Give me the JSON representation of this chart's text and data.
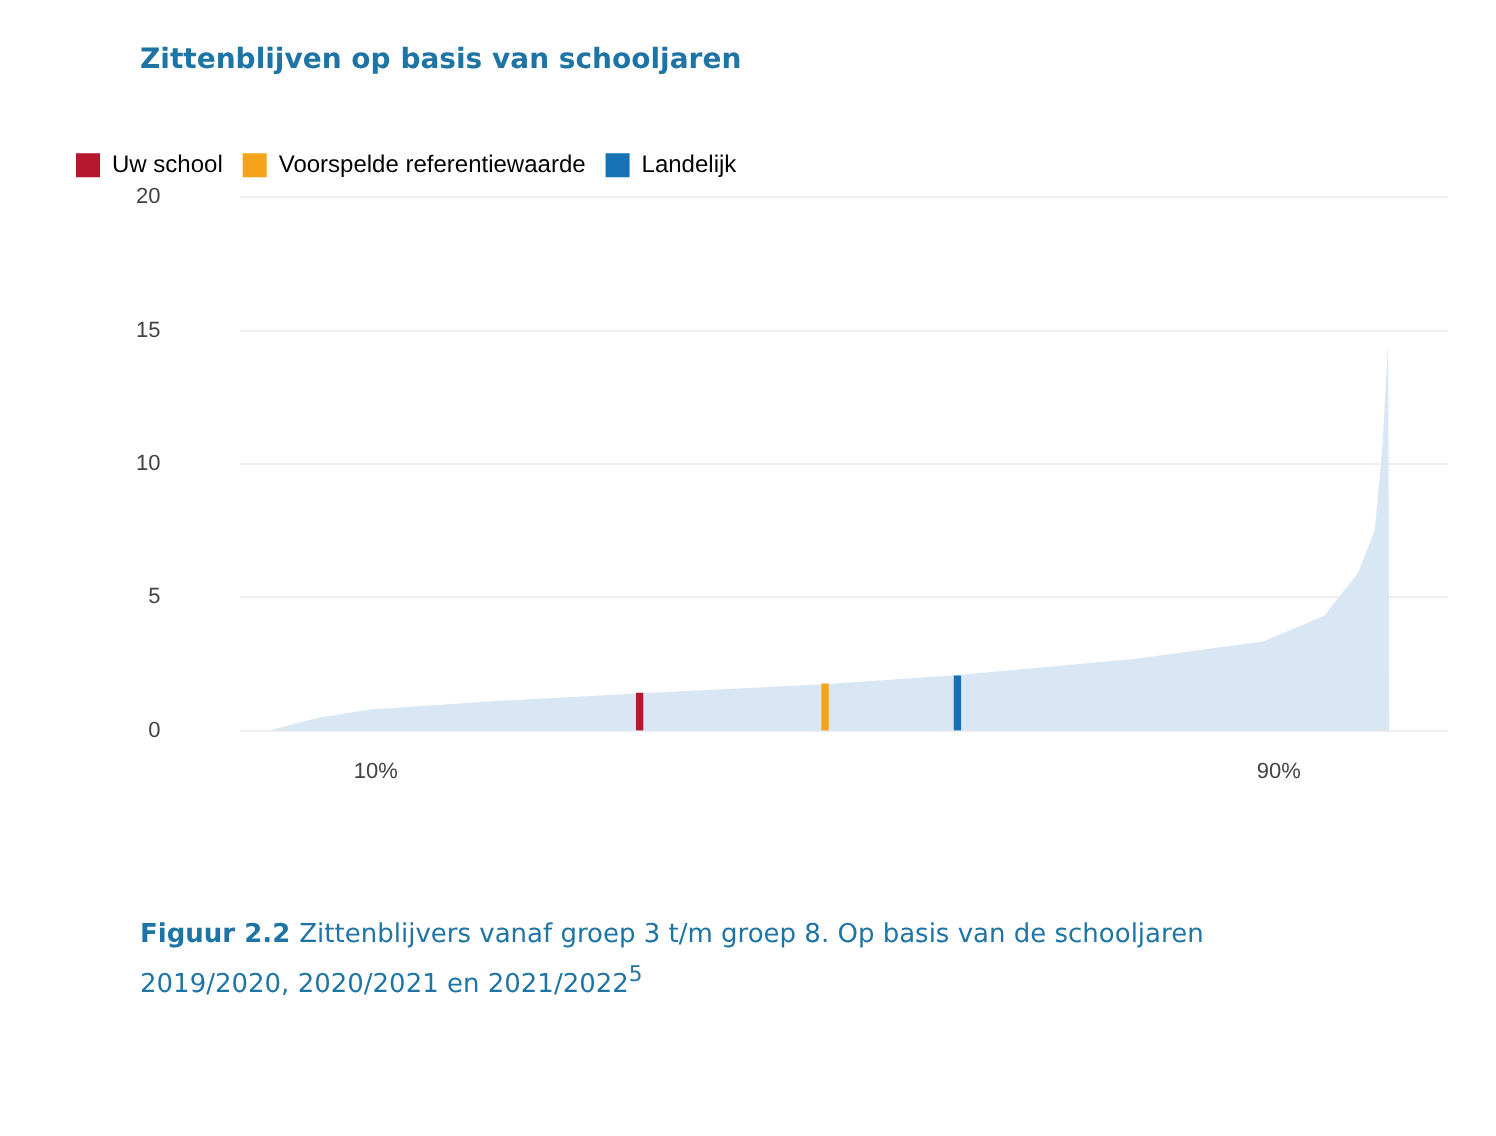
{
  "chart_data": {
    "type": "area",
    "title": "Zittenblijven op basis van schooljaren",
    "annotations": [
      "Figuur 2.2",
      "Zittenblijvers vanaf groep 3 t/m groep 8. Op basis van de schooljaren 2019/2020, 2020/2021 en 2021/2022$^{5}$"
    ],
    "xlim": [
      -2,
      105
    ],
    "xticks": [
      {
        "value": 10,
        "label": "10%"
      },
      {
        "value": 90,
        "label": "90%"
      }
    ],
    "ylim": [
      0,
      20
    ],
    "yticks": [
      0,
      5,
      10,
      15,
      20
    ],
    "grid": "y",
    "legend": "top left",
    "series": [
      {
        "color": "#d9e7f4",
        "x": [
          0.4,
          5,
          9.5,
          20,
          33.9,
          50,
          61,
          77.3,
          88.6,
          94,
          97,
          98.5,
          99.2,
          99.7,
          99.8
        ],
        "values": [
          0,
          0.5,
          0.8,
          1.1,
          1.42,
          1.75,
          2.07,
          2.7,
          3.35,
          4.3,
          5.9,
          7.5,
          10.7,
          14.6,
          0
        ]
      },
      {
        "type": "bar",
        "name": "Uw school",
        "color": "#b5172f",
        "x": [
          33.9
        ],
        "values": [
          1.4
        ]
      },
      {
        "type": "bar",
        "name": "Voorspelde referentiewaarde",
        "color": "#f5a31a",
        "x": [
          49.8
        ],
        "values": [
          1.75
        ]
      },
      {
        "type": "bar",
        "name": "Landelijk",
        "color": "#1672b5",
        "x": [
          61
        ],
        "values": [
          2.05
        ]
      }
    ]
  }
}
